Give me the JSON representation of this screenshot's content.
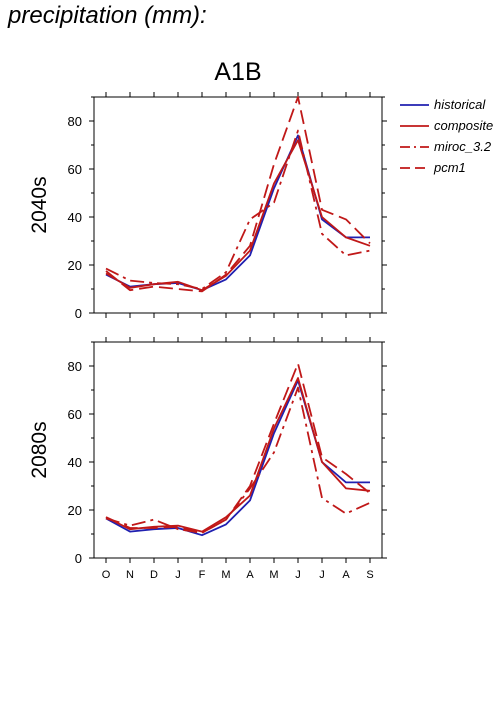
{
  "heading": "precipitation (mm):",
  "scenario_label": "A1B",
  "colors": {
    "historical": "#2020b0",
    "models": "#c01818"
  },
  "chart_data": [
    {
      "type": "line",
      "panel_label": "2040s",
      "categories": [
        "O",
        "N",
        "D",
        "J",
        "F",
        "M",
        "A",
        "M",
        "J",
        "J",
        "A",
        "S"
      ],
      "ylim": [
        0,
        90
      ],
      "yticks": [
        0,
        20,
        40,
        60,
        80
      ],
      "grid": false,
      "legend_position": "right",
      "series": [
        {
          "name": "historical",
          "style": "solid",
          "color": "#2020b0",
          "values": [
            16,
            11,
            12,
            12.5,
            9.5,
            14,
            24,
            52,
            74,
            39,
            31.5,
            31.5
          ]
        },
        {
          "name": "composite",
          "style": "solid",
          "color": "#c01818",
          "values": [
            16.5,
            10.5,
            12,
            13,
            9.5,
            15.5,
            26,
            54,
            72,
            40,
            31.5,
            28
          ]
        },
        {
          "name": "miroc_3.2",
          "style": "dashdot",
          "color": "#c01818",
          "values": [
            18.5,
            13.5,
            12.5,
            12,
            10,
            17,
            39,
            46,
            76,
            33,
            24,
            26
          ]
        },
        {
          "name": "pcm1",
          "style": "dashed",
          "color": "#c01818",
          "values": [
            17.5,
            9.5,
            11,
            10,
            9,
            16,
            28,
            62,
            90,
            43,
            39,
            29
          ]
        }
      ]
    },
    {
      "type": "line",
      "panel_label": "2080s",
      "categories": [
        "O",
        "N",
        "D",
        "J",
        "F",
        "M",
        "A",
        "M",
        "J",
        "J",
        "A",
        "S"
      ],
      "ylim": [
        0,
        90
      ],
      "yticks": [
        0,
        20,
        40,
        60,
        80
      ],
      "grid": false,
      "series": [
        {
          "name": "historical",
          "style": "solid",
          "color": "#2020b0",
          "values": [
            16.5,
            11,
            12,
            12.5,
            9.5,
            14,
            24,
            52,
            74,
            40,
            31.5,
            31.5
          ]
        },
        {
          "name": "composite",
          "style": "solid",
          "color": "#c01818",
          "values": [
            17,
            12,
            13,
            13.5,
            11,
            17,
            26,
            54,
            75,
            40,
            29,
            28
          ]
        },
        {
          "name": "miroc_3.2",
          "style": "dashdot",
          "color": "#c01818",
          "values": [
            16.5,
            13.5,
            16,
            12,
            10.5,
            16,
            29,
            44,
            71,
            25,
            18.5,
            23
          ]
        },
        {
          "name": "pcm1",
          "style": "dashed",
          "color": "#c01818",
          "values": [
            17,
            12.5,
            12.5,
            13,
            10.5,
            16,
            30,
            56,
            81,
            42,
            35,
            27
          ]
        }
      ]
    }
  ]
}
